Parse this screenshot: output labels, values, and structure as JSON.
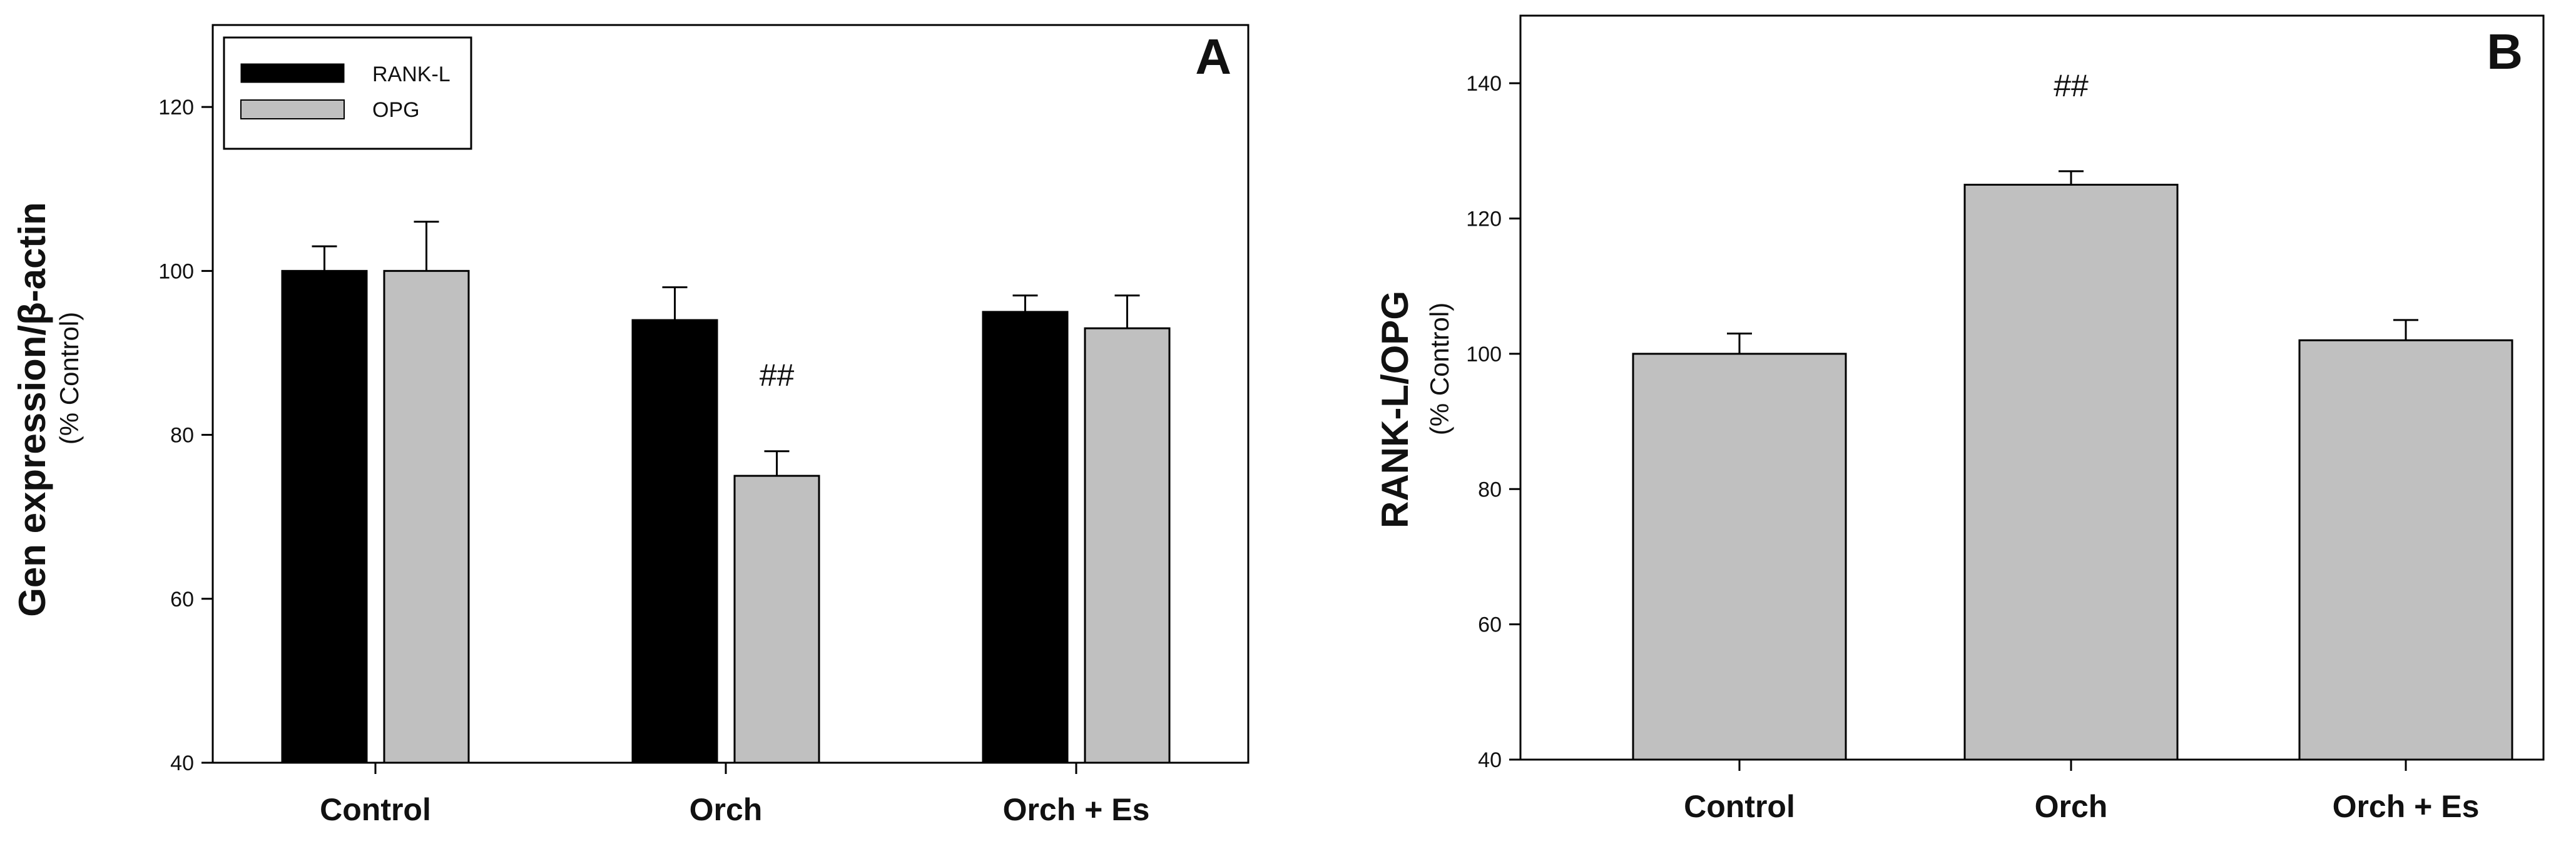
{
  "chart_data": [
    {
      "type": "bar",
      "panel": "A",
      "ylabel": "Gen expression/β-actin",
      "ylabel_sub": "(% Control)",
      "ylim": [
        40,
        130
      ],
      "yticks": [
        40,
        60,
        80,
        100,
        120
      ],
      "categories": [
        "Control",
        "Orch",
        "Orch + Es"
      ],
      "series": [
        {
          "name": "RANK-L",
          "color": "#000000",
          "values": [
            100,
            94,
            95
          ],
          "errors": [
            3,
            4,
            2
          ]
        },
        {
          "name": "OPG",
          "color": "#c0c0c0",
          "values": [
            100,
            75,
            93
          ],
          "errors": [
            6,
            3,
            4
          ]
        }
      ],
      "annotations": [
        {
          "category": "Orch",
          "series": "OPG",
          "text": "##"
        }
      ],
      "legend_position": "top-left"
    },
    {
      "type": "bar",
      "panel": "B",
      "ylabel": "RANK-L/OPG",
      "ylabel_sub": "(% Control)",
      "ylim": [
        40,
        150
      ],
      "yticks": [
        40,
        60,
        80,
        100,
        120,
        140
      ],
      "categories": [
        "Control",
        "Orch",
        "Orch + Es"
      ],
      "series": [
        {
          "name": "RANK-L/OPG",
          "color": "#c0c0c0",
          "values": [
            100,
            125,
            102
          ],
          "errors": [
            3,
            2,
            3
          ]
        }
      ],
      "annotations": [
        {
          "category": "Orch",
          "series": "RANK-L/OPG",
          "text": "##"
        }
      ]
    }
  ]
}
